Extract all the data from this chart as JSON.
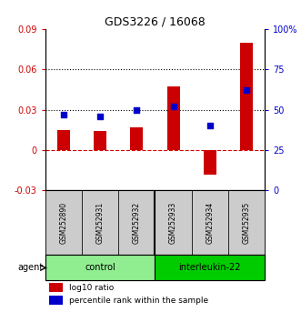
{
  "title": "GDS3226 / 16068",
  "samples": [
    "GSM252890",
    "GSM252931",
    "GSM252932",
    "GSM252933",
    "GSM252934",
    "GSM252935"
  ],
  "log10_ratio": [
    0.015,
    0.014,
    0.017,
    0.047,
    -0.018,
    0.08
  ],
  "percentile_rank": [
    47,
    46,
    50,
    52,
    40,
    62
  ],
  "groups": [
    {
      "label": "control",
      "indices": [
        0,
        1,
        2
      ],
      "color": "#90ee90"
    },
    {
      "label": "interleukin-22",
      "indices": [
        3,
        4,
        5
      ],
      "color": "#00cc00"
    }
  ],
  "bar_color": "#cc0000",
  "dot_color": "#0000cc",
  "ylim_left": [
    -0.03,
    0.09
  ],
  "ylim_right": [
    0,
    100
  ],
  "yticks_left": [
    -0.03,
    0,
    0.03,
    0.06,
    0.09
  ],
  "yticks_right": [
    0,
    25,
    50,
    75,
    100
  ],
  "hlines": [
    0.03,
    0.06
  ],
  "hline_zero_color": "#cc0000",
  "dotted_color": "#000000",
  "background_color": "#ffffff",
  "tick_label_color_left": "#cc0000",
  "tick_label_color_right": "#0000cc",
  "bar_width": 0.35,
  "group_bg_color": "#cccccc",
  "legend_red_label": "log10 ratio",
  "legend_blue_label": "percentile rank within the sample"
}
